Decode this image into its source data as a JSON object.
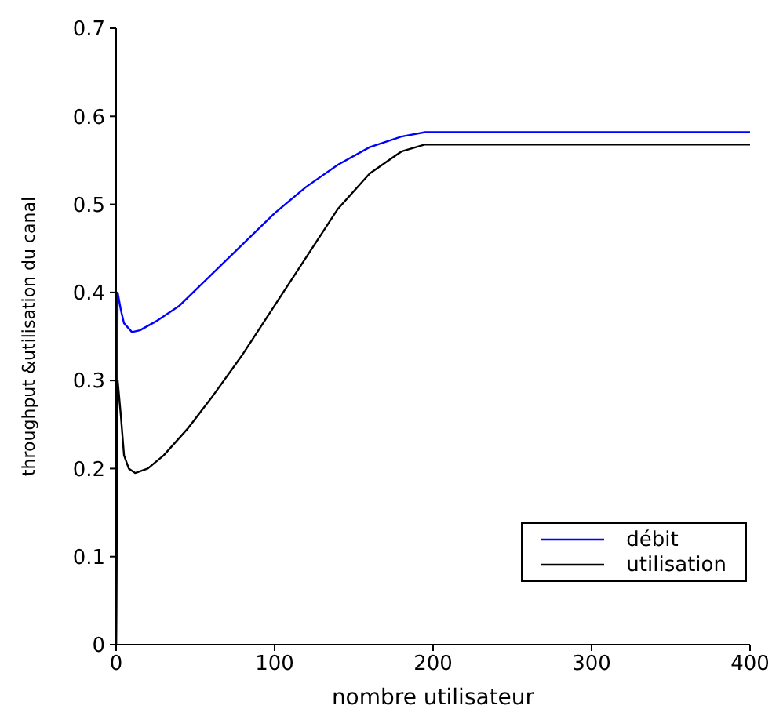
{
  "chart_data": {
    "type": "line",
    "xlabel": "nombre utilisateur",
    "ylabel": "throughput &utilisation du canal",
    "xlim": [
      0,
      400
    ],
    "xticks": [
      0,
      100,
      200,
      300,
      400
    ],
    "ylim": [
      0,
      0.7
    ],
    "yticks": [
      0,
      0.1,
      0.2,
      0.3,
      0.4,
      0.5,
      0.6,
      0.7
    ],
    "grid": false,
    "legend": "bottom right",
    "marker": "none",
    "line_style": "solid",
    "series": [
      {
        "name": "débit",
        "color": "#0000ff",
        "x": [
          0,
          1,
          3,
          5,
          10,
          15,
          25,
          40,
          60,
          80,
          100,
          120,
          140,
          160,
          180,
          195,
          400
        ],
        "values": [
          0,
          0.4,
          0.38,
          0.365,
          0.355,
          0.357,
          0.367,
          0.385,
          0.42,
          0.455,
          0.49,
          0.52,
          0.545,
          0.565,
          0.577,
          0.582,
          0.582
        ]
      },
      {
        "name": "utilisation",
        "color": "#000000",
        "x": [
          0,
          1,
          3,
          5,
          8,
          12,
          20,
          30,
          45,
          60,
          80,
          100,
          120,
          140,
          160,
          180,
          195,
          400
        ],
        "values": [
          0,
          0.3,
          0.26,
          0.215,
          0.2,
          0.195,
          0.2,
          0.215,
          0.245,
          0.28,
          0.33,
          0.385,
          0.44,
          0.495,
          0.535,
          0.56,
          0.568,
          0.568
        ]
      }
    ]
  }
}
